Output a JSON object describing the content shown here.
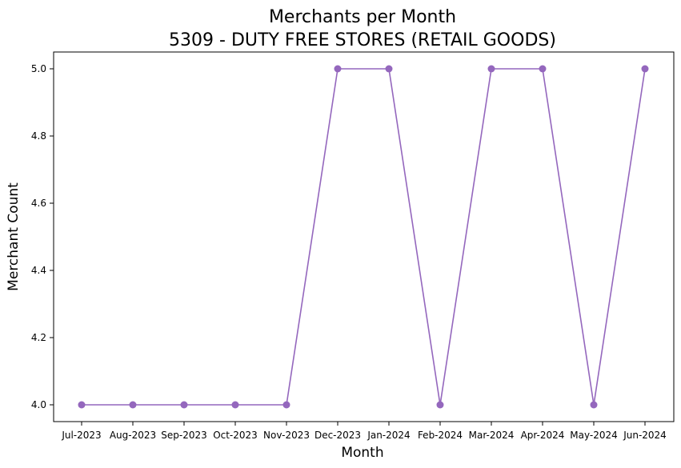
{
  "chart_data": {
    "type": "line",
    "title_line1": "Merchants per Month",
    "title_line2": "5309 - DUTY FREE STORES (RETAIL GOODS)",
    "xlabel": "Month",
    "ylabel": "Merchant Count",
    "categories": [
      "Jul-2023",
      "Aug-2023",
      "Sep-2023",
      "Oct-2023",
      "Nov-2023",
      "Dec-2023",
      "Jan-2024",
      "Feb-2024",
      "Mar-2024",
      "Apr-2024",
      "May-2024",
      "Jun-2024"
    ],
    "series": [
      {
        "values": [
          4,
          4,
          4,
          4,
          4,
          5,
          5,
          4,
          5,
          5,
          4,
          5
        ],
        "color": "#9467bd"
      }
    ],
    "ylim": [
      3.95,
      5.05
    ],
    "yticks": [
      4.0,
      4.2,
      4.4,
      4.6,
      4.8,
      5.0
    ],
    "ytick_labels": [
      "4.0",
      "4.2",
      "4.4",
      "4.6",
      "4.8",
      "5.0"
    ],
    "grid": false,
    "marker": "circle"
  }
}
